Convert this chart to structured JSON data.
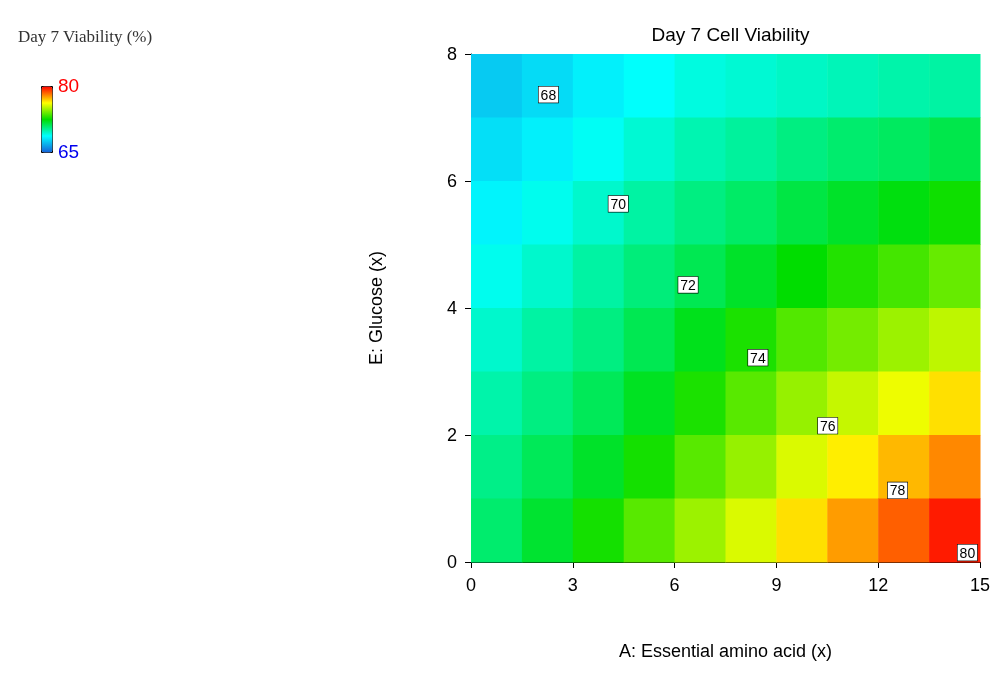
{
  "chart_data": {
    "type": "heatmap",
    "title": "Day 7 Cell Viability",
    "xlabel": "A: Essential amino acid (x)",
    "ylabel": "E: Glucose (x)",
    "clabel": "Day 7 Viability (%)",
    "x": [
      0.75,
      2.25,
      3.75,
      5.25,
      6.75,
      8.25,
      9.75,
      11.25,
      12.75,
      14.25
    ],
    "y": [
      7.5,
      6.5,
      5.5,
      4.5,
      3.5,
      2.5,
      1.5,
      0.5
    ],
    "cells": [
      [
        67.5,
        67.9,
        68.4,
        68.8,
        69.2,
        69.4,
        69.6,
        69.8,
        70.0,
        70.1
      ],
      [
        68.0,
        68.4,
        68.9,
        69.4,
        69.9,
        70.2,
        70.6,
        70.9,
        71.1,
        71.4
      ],
      [
        68.5,
        69.0,
        69.5,
        70.1,
        70.6,
        71.0,
        71.5,
        71.9,
        72.3,
        72.7
      ],
      [
        69.0,
        69.5,
        70.1,
        70.7,
        71.3,
        71.9,
        72.5,
        73.0,
        73.5,
        74.0
      ],
      [
        69.5,
        70.1,
        70.6,
        71.3,
        72.1,
        72.9,
        73.7,
        74.2,
        74.8,
        75.3
      ],
      [
        70.0,
        70.6,
        71.2,
        72.0,
        72.9,
        73.8,
        74.7,
        75.4,
        76.0,
        76.7
      ],
      [
        70.5,
        71.2,
        71.9,
        72.8,
        73.8,
        74.7,
        75.7,
        76.5,
        77.3,
        78.0
      ],
      [
        70.9,
        71.8,
        72.8,
        73.8,
        74.8,
        75.7,
        76.7,
        77.7,
        78.6,
        79.6
      ]
    ],
    "xlim": [
      0,
      15
    ],
    "xticks": [
      0,
      3,
      6,
      9,
      12,
      15
    ],
    "ylim": [
      0,
      8
    ],
    "yticks": [
      0,
      2,
      4,
      6,
      8
    ],
    "clim": [
      65,
      80
    ],
    "cticks": [
      65,
      80
    ],
    "annotations": [
      "68",
      "70",
      "72",
      "74",
      "76",
      "78",
      "80"
    ],
    "grid": false
  }
}
